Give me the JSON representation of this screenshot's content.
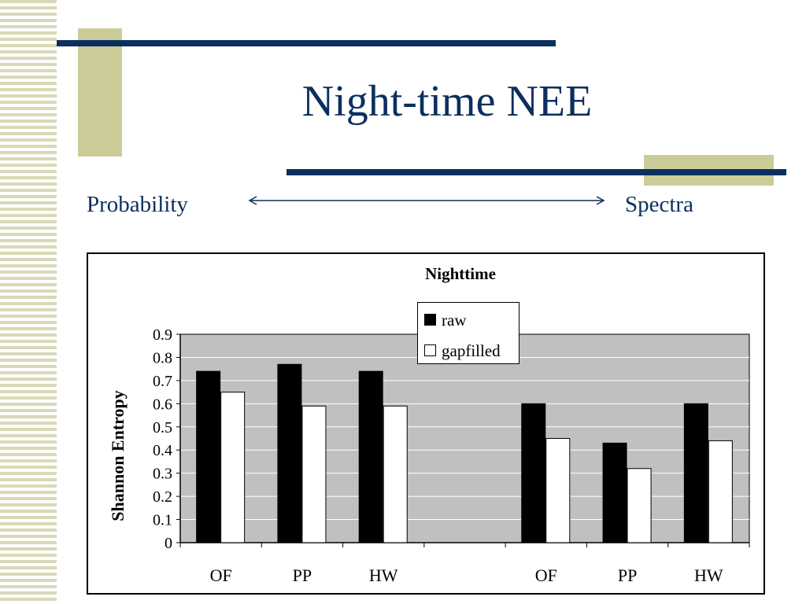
{
  "slide": {
    "title": "Night-time NEE",
    "left_label": "Probability",
    "right_label": "Spectra",
    "colors": {
      "title": "#0b2f5e",
      "accent": "#cccc99"
    }
  },
  "chart_data": {
    "type": "bar",
    "title": "Nighttime",
    "ylabel": "Shannon Entropy",
    "xlabel": "",
    "categories": [
      "OF",
      "PP",
      "HW",
      "",
      "OF",
      "PP",
      "HW"
    ],
    "series": [
      {
        "name": "raw",
        "values": [
          0.74,
          0.77,
          0.74,
          null,
          0.6,
          0.43,
          0.6
        ],
        "color": "#000000"
      },
      {
        "name": "gapfilled",
        "values": [
          0.65,
          0.59,
          0.59,
          null,
          0.45,
          0.32,
          0.44
        ],
        "color": "#ffffff"
      }
    ],
    "yticks": [
      "0",
      "0.1",
      "0.2",
      "0.3",
      "0.4",
      "0.5",
      "0.6",
      "0.7",
      "0.8",
      "0.9"
    ],
    "ylim": [
      0,
      0.9
    ],
    "grid": true,
    "plot_background": "#c0c0c0",
    "legend_position": "top-center"
  }
}
